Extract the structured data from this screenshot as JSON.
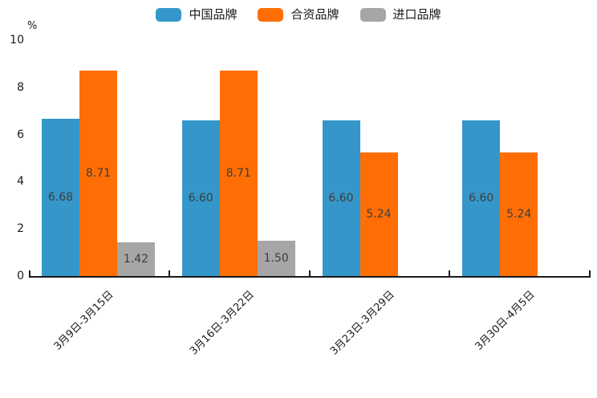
{
  "chart_data": {
    "type": "bar",
    "title": "",
    "ylabel": "%",
    "xlabel": "",
    "ylim": [
      0,
      10
    ],
    "yticks": [
      0,
      2,
      4,
      6,
      8,
      10
    ],
    "grid": false,
    "legend_position": "top",
    "axis_color": "#1a1a1a",
    "value_label_color": "#3d3d3d",
    "categories": [
      "3月9日-3月15日",
      "3月16日-3月22日",
      "3月23日-3月29日",
      "3月30日-4月5日"
    ],
    "series": [
      {
        "name": "中国品牌",
        "slug": "china-brand",
        "color": "#3597c9",
        "values": [
          6.68,
          6.6,
          6.6,
          6.6
        ]
      },
      {
        "name": "合资品牌",
        "slug": "joint-venture-brand",
        "color": "#ff6e05",
        "values": [
          8.71,
          8.71,
          5.24,
          5.24
        ]
      },
      {
        "name": "进口品牌",
        "slug": "import-brand",
        "color": "#a6a6a6",
        "values": [
          1.42,
          1.5,
          null,
          null
        ]
      }
    ]
  }
}
